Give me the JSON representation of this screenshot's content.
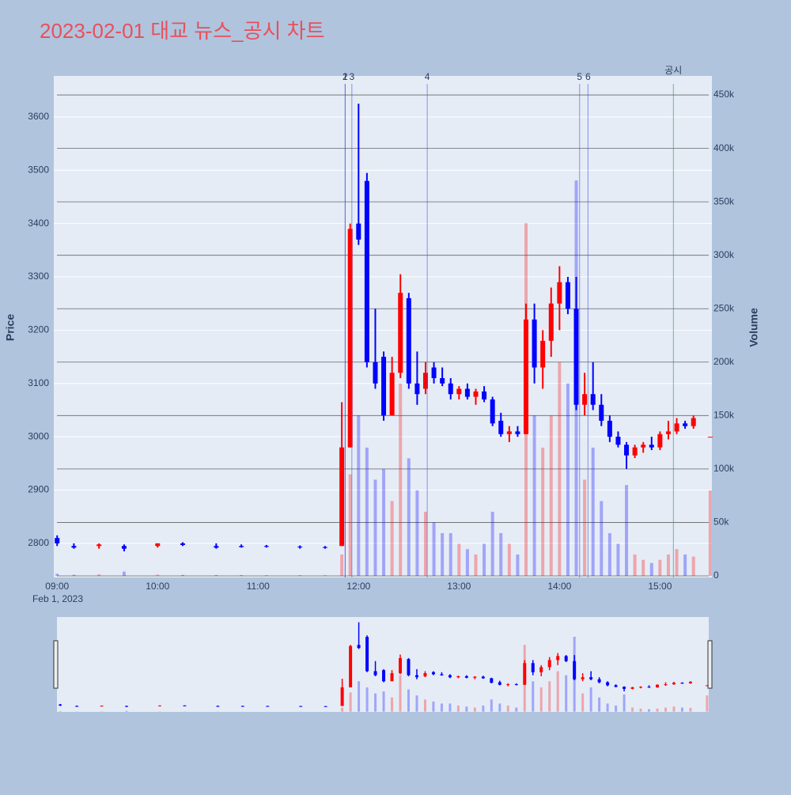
{
  "chart_data": {
    "type": "candlestick",
    "title": "2023-02-01 대교 뉴스_공시 차트",
    "y_label": "Price",
    "y2_label": "Volume",
    "x_date_label": "Feb 1, 2023",
    "x": [
      "09:00",
      "09:10",
      "09:25",
      "09:40",
      "10:00",
      "10:15",
      "10:35",
      "10:50",
      "11:05",
      "11:25",
      "11:40",
      "11:50",
      "11:55",
      "12:00",
      "12:05",
      "12:10",
      "12:15",
      "12:20",
      "12:25",
      "12:30",
      "12:35",
      "12:40",
      "12:45",
      "12:50",
      "12:55",
      "13:00",
      "13:05",
      "13:10",
      "13:15",
      "13:20",
      "13:25",
      "13:30",
      "13:35",
      "13:40",
      "13:45",
      "13:50",
      "13:55",
      "14:00",
      "14:05",
      "14:10",
      "14:15",
      "14:20",
      "14:25",
      "14:30",
      "14:35",
      "14:40",
      "14:45",
      "14:50",
      "14:55",
      "15:00",
      "15:05",
      "15:10",
      "15:15",
      "15:20",
      "15:30"
    ],
    "open": [
      2810,
      2795,
      2795,
      2795,
      2795,
      2800,
      2795,
      2795,
      2795,
      2794,
      2793,
      2795,
      2980,
      3400,
      3480,
      3140,
      3150,
      3040,
      3120,
      3260,
      3100,
      3090,
      3130,
      3110,
      3100,
      3080,
      3090,
      3075,
      3085,
      3070,
      3030,
      3005,
      3010,
      3005,
      3220,
      3130,
      3180,
      3250,
      3290,
      3240,
      3060,
      3080,
      3060,
      3030,
      3000,
      2985,
      2965,
      2980,
      2985,
      2980,
      3005,
      3010,
      3025,
      3020,
      3000
    ],
    "high": [
      2815,
      2800,
      2800,
      2798,
      2800,
      2802,
      2800,
      2798,
      2797,
      2796,
      2795,
      3065,
      3400,
      3625,
      3495,
      3240,
      3160,
      3150,
      3305,
      3270,
      3160,
      3140,
      3140,
      3130,
      3110,
      3095,
      3100,
      3090,
      3095,
      3075,
      3045,
      3020,
      3020,
      3250,
      3250,
      3200,
      3280,
      3320,
      3300,
      3300,
      3120,
      3140,
      3080,
      3040,
      3010,
      2990,
      2985,
      2990,
      3000,
      3010,
      3030,
      3035,
      3030,
      3040,
      3000
    ],
    "low": [
      2795,
      2790,
      2790,
      2785,
      2792,
      2795,
      2790,
      2792,
      2792,
      2790,
      2790,
      2795,
      2980,
      3360,
      3130,
      3090,
      3030,
      3040,
      3110,
      3090,
      3060,
      3080,
      3100,
      3095,
      3070,
      3070,
      3070,
      3060,
      3065,
      3020,
      3000,
      2990,
      3000,
      3005,
      3100,
      3090,
      3150,
      3200,
      3230,
      3050,
      3040,
      3050,
      3020,
      2990,
      2980,
      2940,
      2960,
      2970,
      2975,
      2975,
      2995,
      3005,
      3015,
      3015,
      3000
    ],
    "close": [
      2800,
      2792,
      2798,
      2790,
      2800,
      2797,
      2792,
      2793,
      2794,
      2793,
      2792,
      2980,
      3390,
      3370,
      3140,
      3100,
      3040,
      3120,
      3270,
      3100,
      3080,
      3120,
      3110,
      3100,
      3080,
      3090,
      3075,
      3085,
      3070,
      3025,
      3005,
      3010,
      3005,
      3220,
      3130,
      3180,
      3250,
      3290,
      3240,
      3060,
      3080,
      3060,
      3030,
      3000,
      2985,
      2965,
      2980,
      2985,
      2980,
      3005,
      3010,
      3025,
      3020,
      3035,
      3000
    ],
    "volume": [
      2000,
      1000,
      1500,
      4000,
      1200,
      900,
      800,
      700,
      600,
      600,
      500,
      20000,
      95000,
      150000,
      120000,
      90000,
      100000,
      70000,
      180000,
      110000,
      80000,
      60000,
      50000,
      40000,
      40000,
      30000,
      25000,
      20000,
      30000,
      60000,
      40000,
      30000,
      20000,
      330000,
      150000,
      120000,
      150000,
      200000,
      180000,
      370000,
      90000,
      120000,
      70000,
      40000,
      30000,
      85000,
      20000,
      15000,
      12000,
      15000,
      20000,
      25000,
      20000,
      18000,
      80000
    ],
    "up_color": "#ff0000",
    "down_color": "#0000ff",
    "xlim": [
      "08:58",
      "15:31"
    ],
    "xticks": [
      "09:00",
      "10:00",
      "11:00",
      "12:00",
      "13:00",
      "14:00",
      "15:00"
    ],
    "ylim": [
      2736,
      3677
    ],
    "yticks": [
      2800,
      2900,
      3000,
      3100,
      3200,
      3300,
      3400,
      3500,
      3600
    ],
    "y2lim": [
      -1500,
      467800
    ],
    "y2ticks": [
      0,
      {
        "value": 50000,
        "label": "50k"
      },
      {
        "value": 100000,
        "label": "100k"
      },
      {
        "value": 150000,
        "label": "150k"
      },
      {
        "value": 200000,
        "label": "200k"
      },
      {
        "value": 250000,
        "label": "250k"
      },
      {
        "value": 300000,
        "label": "300k"
      },
      {
        "value": 350000,
        "label": "350k"
      },
      {
        "value": 400000,
        "label": "400k"
      },
      {
        "value": 450000,
        "label": "450k"
      }
    ],
    "events": [
      {
        "label": "1",
        "x": "11:52",
        "color": "#4455dd"
      },
      {
        "label": "2",
        "x": "11:52",
        "color": "#4455dd"
      },
      {
        "label": "3",
        "x": "11:56",
        "color": "#4455dd"
      },
      {
        "label": "4",
        "x": "12:41",
        "color": "#4455dd"
      },
      {
        "label": "5",
        "x": "14:12",
        "color": "#4455dd"
      },
      {
        "label": "6",
        "x": "14:17",
        "color": "#4455dd"
      },
      {
        "label": "공시",
        "x": "15:08",
        "color": "#2e8b57"
      }
    ]
  }
}
